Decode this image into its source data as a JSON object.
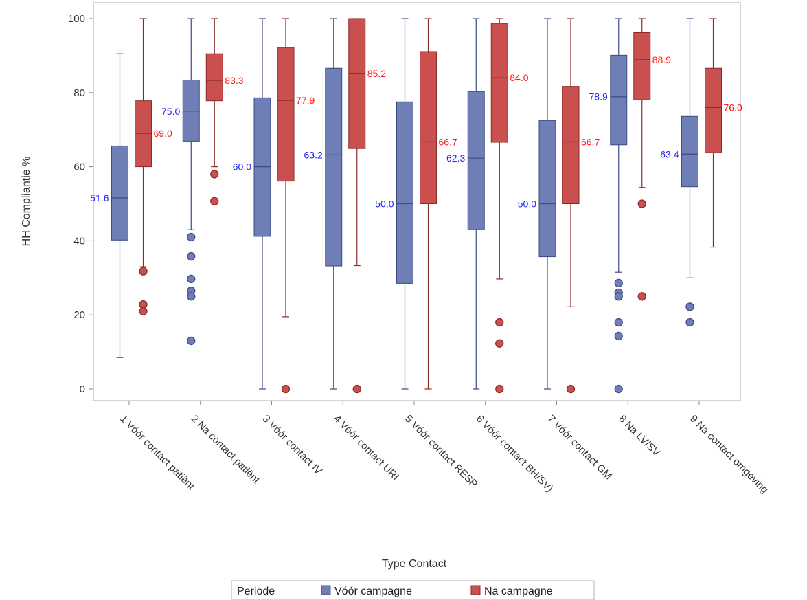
{
  "chart_data": {
    "type": "box",
    "title": "",
    "xlabel": "Type Contact",
    "ylabel": "HH Compliantie %",
    "ylim": [
      0,
      100
    ],
    "yticks": [
      0,
      20,
      40,
      60,
      80,
      100
    ],
    "grid": false,
    "categories": [
      "1 Vóór contact patiënt",
      "2 Na contact patiënt",
      "3 Vóór contact IV",
      "4 Vóór contact URI",
      "5 Vóór contact RESP",
      "6 Vóór contact BH/SV)",
      "7 Vóór contact GM",
      "8 Na  LV/SV",
      "9 Na contact omgeving"
    ],
    "legend": {
      "title": "Periode",
      "placement": "bottom-center"
    },
    "series": [
      {
        "name": "Vóór campagne",
        "color": "#6f7eb5",
        "edge_color": "#3d4a86",
        "label_color": "#2222ff",
        "boxes": [
          {
            "whisker_low": 8.5,
            "q1": 40.2,
            "median": 51.6,
            "q3": 65.6,
            "whisker_high": 90.5,
            "outliers": [],
            "label": "51.6"
          },
          {
            "whisker_low": 43.0,
            "q1": 66.9,
            "median": 75.0,
            "q3": 83.4,
            "whisker_high": 100,
            "outliers": [
              41.0,
              35.8,
              29.7,
              26.5,
              25.0,
              13.0
            ],
            "label": "75.0"
          },
          {
            "whisker_low": 0,
            "q1": 41.2,
            "median": 60.0,
            "q3": 78.6,
            "whisker_high": 100,
            "outliers": [],
            "label": "60.0"
          },
          {
            "whisker_low": 0,
            "q1": 33.2,
            "median": 63.2,
            "q3": 86.6,
            "whisker_high": 100,
            "outliers": [],
            "label": "63.2"
          },
          {
            "whisker_low": 0,
            "q1": 28.5,
            "median": 50.0,
            "q3": 77.5,
            "whisker_high": 100,
            "outliers": [],
            "label": "50.0"
          },
          {
            "whisker_low": 0,
            "q1": 43.0,
            "median": 62.3,
            "q3": 80.3,
            "whisker_high": 100,
            "outliers": [],
            "label": "62.3"
          },
          {
            "whisker_low": 0,
            "q1": 35.7,
            "median": 50.0,
            "q3": 72.5,
            "whisker_high": 100,
            "outliers": [],
            "label": "50.0"
          },
          {
            "whisker_low": 31.5,
            "q1": 65.9,
            "median": 78.9,
            "q3": 90.1,
            "whisker_high": 100,
            "outliers": [
              28.6,
              26.0,
              25.0,
              18.0,
              14.3,
              0
            ],
            "label": "78.9"
          },
          {
            "whisker_low": 30.0,
            "q1": 54.6,
            "median": 63.4,
            "q3": 73.6,
            "whisker_high": 100,
            "outliers": [
              22.2,
              18.0
            ],
            "label": "63.4"
          }
        ]
      },
      {
        "name": "Na campagne",
        "color": "#c9504f",
        "edge_color": "#8b2a28",
        "label_color": "#ff1a1a",
        "boxes": [
          {
            "whisker_low": 33.0,
            "q1": 60.0,
            "median": 69.0,
            "q3": 77.8,
            "whisker_high": 100,
            "outliers": [
              31.8,
              22.8,
              21.0
            ],
            "label": "69.0"
          },
          {
            "whisker_low": 60.0,
            "q1": 77.8,
            "median": 83.3,
            "q3": 90.5,
            "whisker_high": 100,
            "outliers": [
              58.0,
              50.7
            ],
            "label": "83.3"
          },
          {
            "whisker_low": 19.5,
            "q1": 56.1,
            "median": 77.9,
            "q3": 92.2,
            "whisker_high": 100,
            "outliers": [
              0
            ],
            "label": "77.9"
          },
          {
            "whisker_low": 33.3,
            "q1": 64.9,
            "median": 85.2,
            "q3": 100,
            "whisker_high": 100,
            "outliers": [
              0
            ],
            "label": "85.2"
          },
          {
            "whisker_low": 0,
            "q1": 50.0,
            "median": 66.7,
            "q3": 91.1,
            "whisker_high": 100,
            "outliers": [],
            "label": "66.7"
          },
          {
            "whisker_low": 29.7,
            "q1": 66.6,
            "median": 84.0,
            "q3": 98.7,
            "whisker_high": 100,
            "outliers": [
              18.0,
              12.3,
              0
            ],
            "label": "84.0"
          },
          {
            "whisker_low": 22.2,
            "q1": 50.0,
            "median": 66.7,
            "q3": 81.7,
            "whisker_high": 100,
            "outliers": [
              0
            ],
            "label": "66.7"
          },
          {
            "whisker_low": 54.4,
            "q1": 78.1,
            "median": 88.9,
            "q3": 96.2,
            "whisker_high": 100,
            "outliers": [
              50.0,
              25.0
            ],
            "label": "88.9"
          },
          {
            "whisker_low": 38.3,
            "q1": 63.8,
            "median": 76.0,
            "q3": 86.6,
            "whisker_high": 100,
            "outliers": [],
            "label": "76.0"
          }
        ]
      }
    ]
  }
}
